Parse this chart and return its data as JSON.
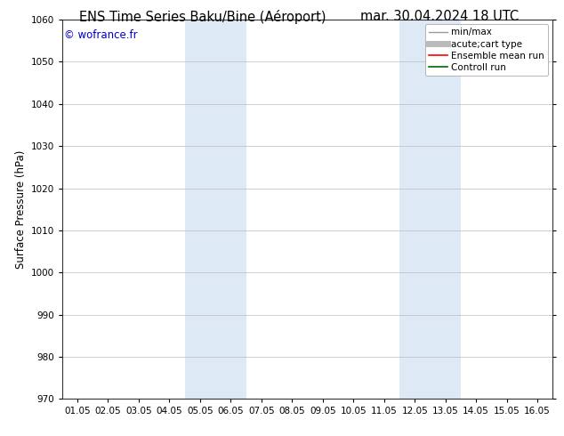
{
  "title_left": "ENS Time Series Baku/Bine (Aéroport)",
  "title_right": "mar. 30.04.2024 18 UTC",
  "ylabel": "Surface Pressure (hPa)",
  "ylim": [
    970,
    1060
  ],
  "yticks": [
    970,
    980,
    990,
    1000,
    1010,
    1020,
    1030,
    1040,
    1050,
    1060
  ],
  "xtick_labels": [
    "01.05",
    "02.05",
    "03.05",
    "04.05",
    "05.05",
    "06.05",
    "07.05",
    "08.05",
    "09.05",
    "10.05",
    "11.05",
    "12.05",
    "13.05",
    "14.05",
    "15.05",
    "16.05"
  ],
  "xtick_positions": [
    0,
    1,
    2,
    3,
    4,
    5,
    6,
    7,
    8,
    9,
    10,
    11,
    12,
    13,
    14,
    15
  ],
  "xlim": [
    -0.5,
    15.5
  ],
  "shaded_regions": [
    {
      "xmin": 3.5,
      "xmax": 5.5
    },
    {
      "xmin": 10.5,
      "xmax": 12.5
    }
  ],
  "shaded_color": "#ddeaf5",
  "watermark": "© wofrance.fr",
  "watermark_color": "#0000cc",
  "bg_color": "#ffffff",
  "grid_color": "#bbbbbb",
  "legend_items": [
    {
      "label": "min/max",
      "color": "#999999",
      "lw": 1.0
    },
    {
      "label": "acute;cart type",
      "color": "#bbbbbb",
      "lw": 5
    },
    {
      "label": "Ensemble mean run",
      "color": "#ff0000",
      "lw": 1.2
    },
    {
      "label": "Controll run",
      "color": "#006600",
      "lw": 1.2
    }
  ],
  "title_fontsize": 10.5,
  "tick_fontsize": 7.5,
  "ylabel_fontsize": 8.5,
  "watermark_fontsize": 8.5,
  "legend_fontsize": 7.5
}
